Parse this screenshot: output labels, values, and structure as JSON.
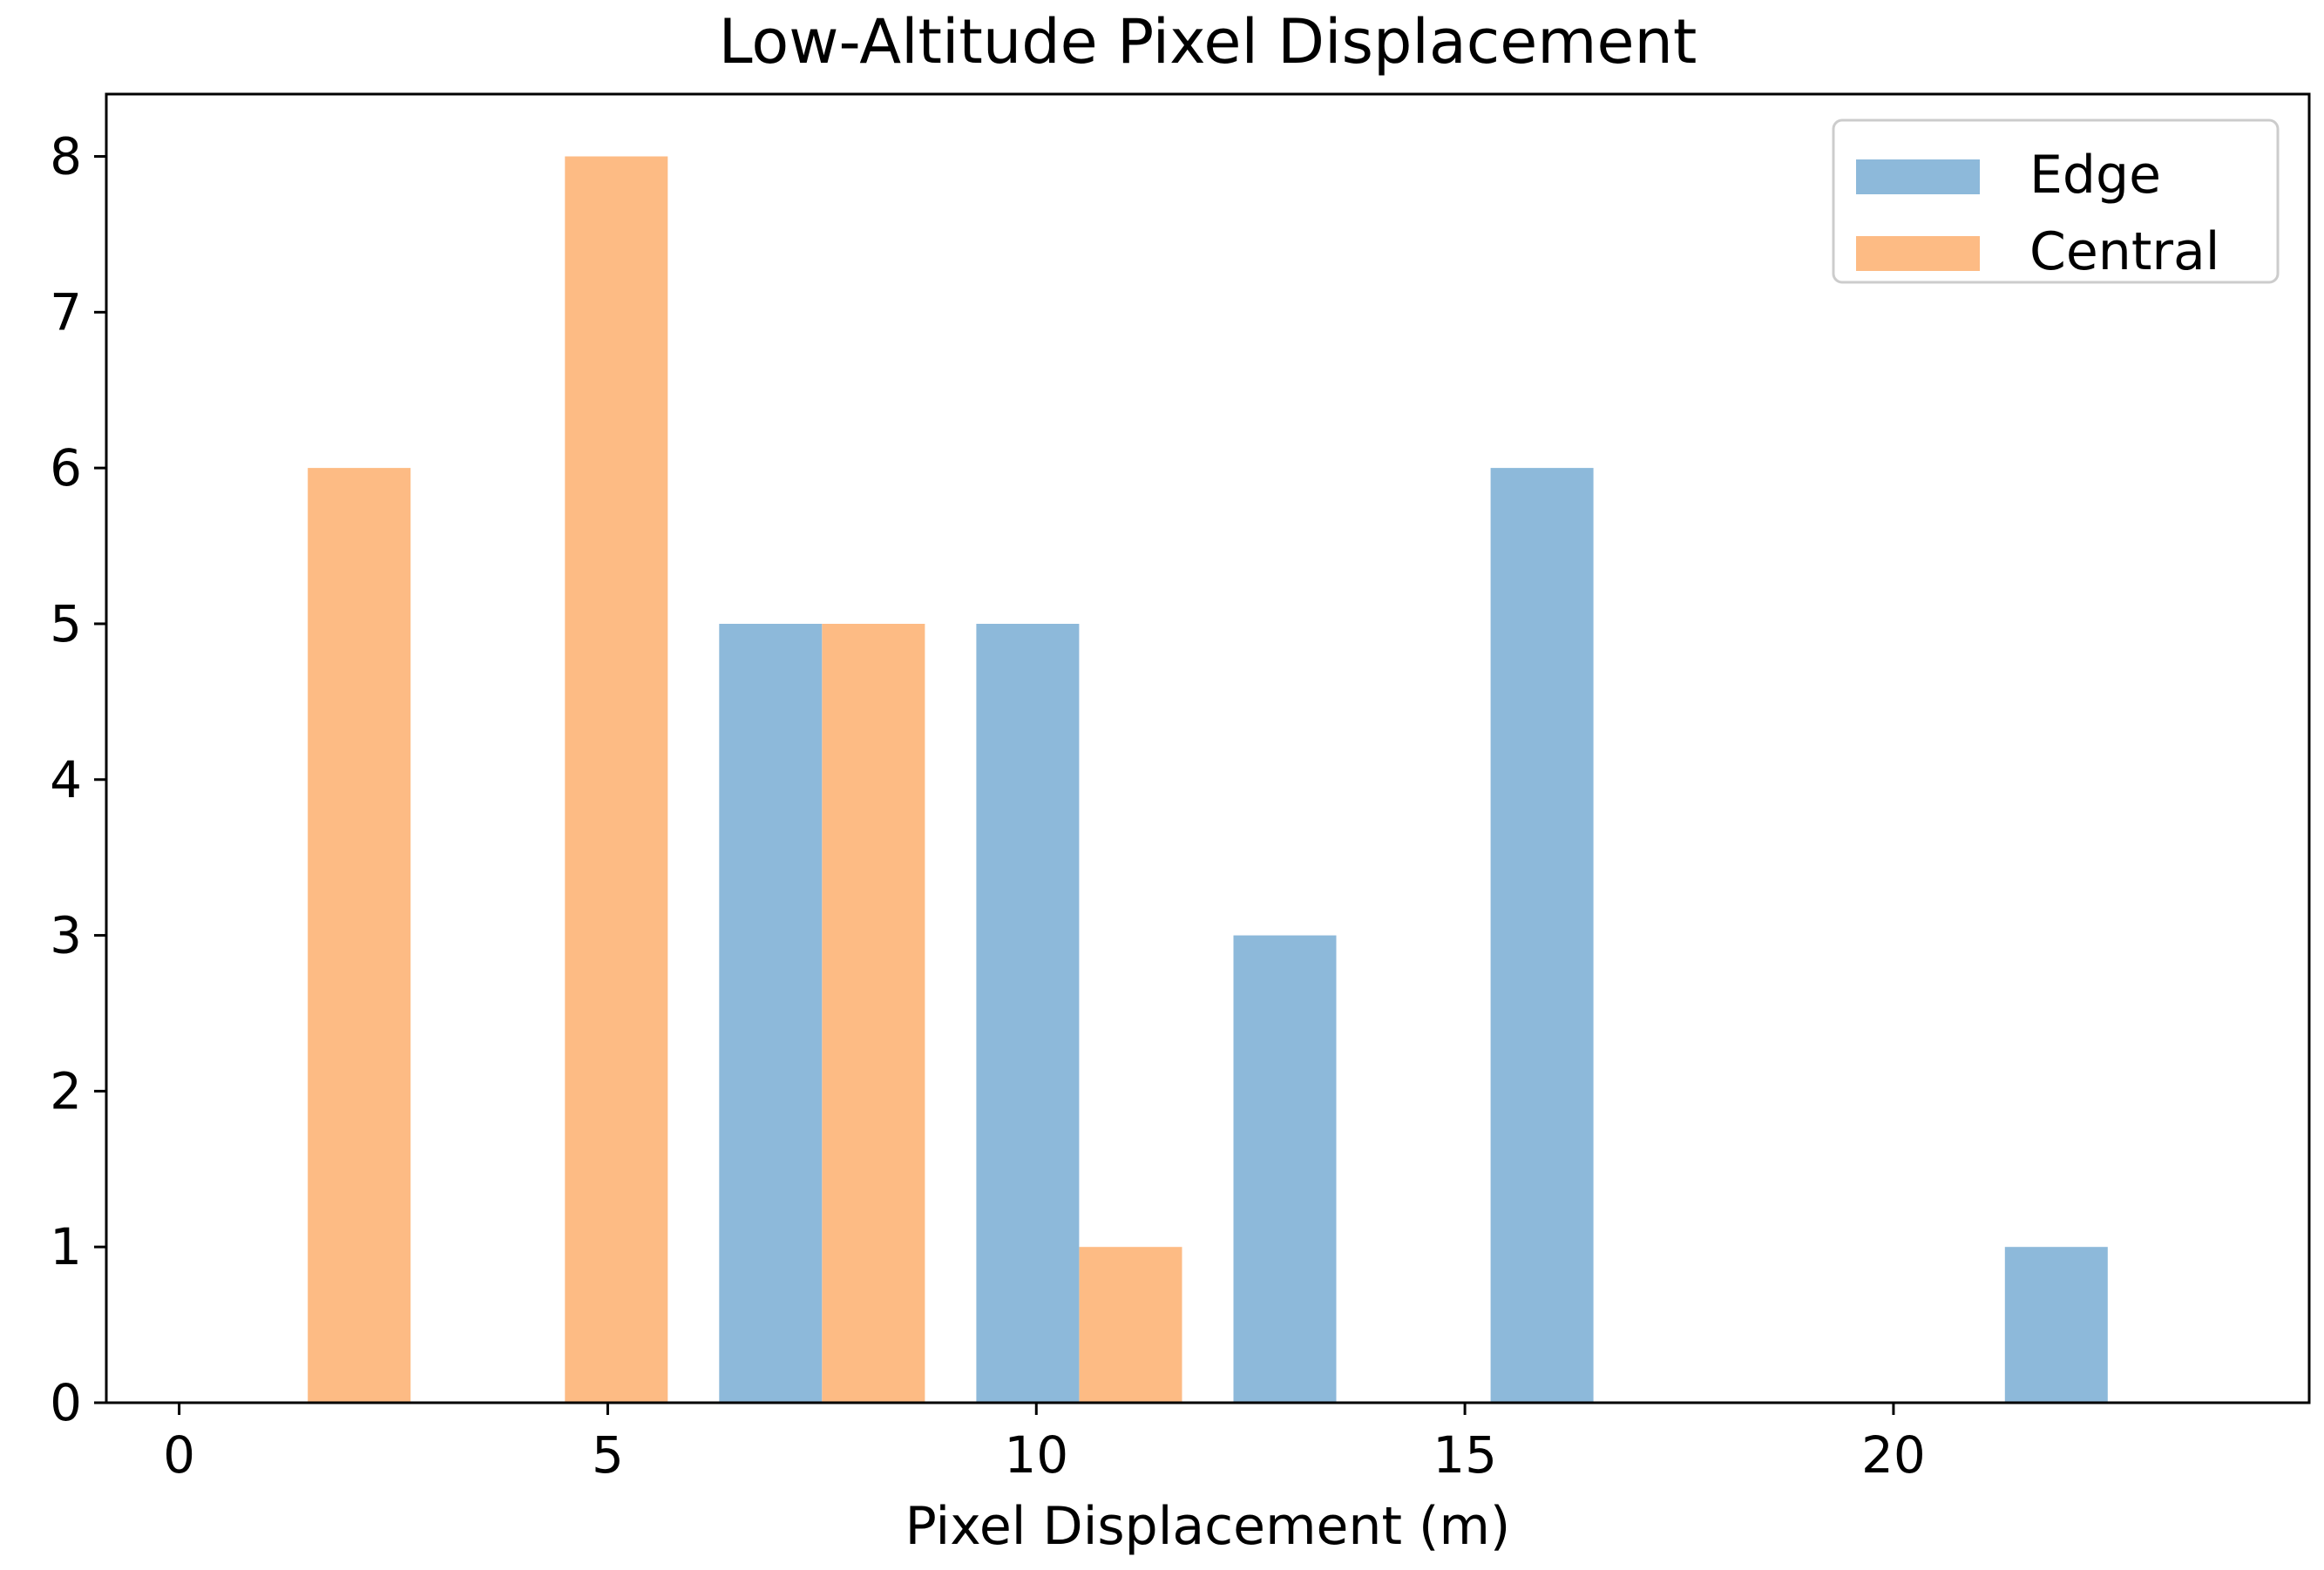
{
  "chart_data": {
    "type": "bar",
    "title": "Low-Altitude Pixel Displacement",
    "xlabel": "Pixel Displacement (m)",
    "ylabel": "",
    "xlim": [
      -0.85,
      24.85
    ],
    "ylim": [
      0,
      8.4
    ],
    "xticks": [
      0,
      5,
      10,
      15,
      20
    ],
    "yticks": [
      0,
      1,
      2,
      3,
      4,
      5,
      6,
      7,
      8
    ],
    "bar_width": 1.2,
    "grid": false,
    "legend_position": "top-right",
    "series": [
      {
        "name": "Edge",
        "color": "#8db9da",
        "x": [
          6.9,
          9.9,
          12.9,
          15.9,
          21.9
        ],
        "values": [
          5,
          5,
          3,
          6,
          1
        ]
      },
      {
        "name": "Central",
        "color": "#fdbb84",
        "x": [
          2.1,
          5.1,
          8.1,
          11.1
        ],
        "values": [
          6,
          8,
          5,
          1
        ]
      }
    ]
  }
}
